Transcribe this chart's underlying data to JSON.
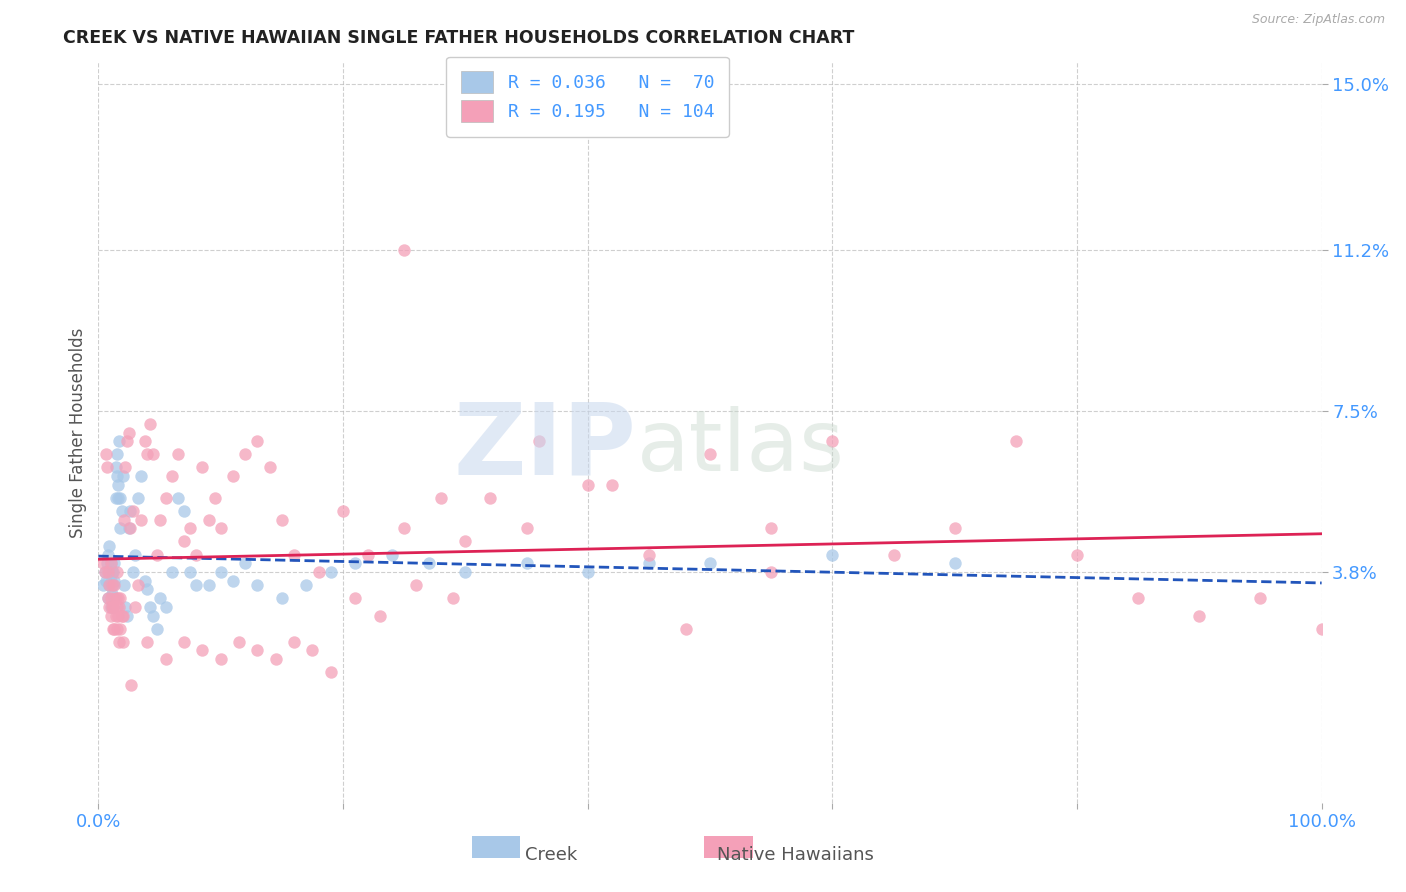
{
  "title": "CREEK VS NATIVE HAWAIIAN SINGLE FATHER HOUSEHOLDS CORRELATION CHART",
  "source": "Source: ZipAtlas.com",
  "ylabel": "Single Father Households",
  "xlim": [
    0,
    1.0
  ],
  "ylim": [
    -0.015,
    0.155
  ],
  "yticks": [
    0.038,
    0.075,
    0.112,
    0.15
  ],
  "ytick_labels": [
    "3.8%",
    "7.5%",
    "11.2%",
    "15.0%"
  ],
  "xticks": [
    0.0,
    0.2,
    0.4,
    0.6,
    0.8,
    1.0
  ],
  "xtick_labels": [
    "0.0%",
    "",
    "",
    "",
    "",
    "100.0%"
  ],
  "creek_color": "#a8c8e8",
  "creek_line_color": "#2255bb",
  "native_color": "#f4a0b8",
  "native_line_color": "#dd2255",
  "creek_R": 0.036,
  "creek_N": 70,
  "native_R": 0.195,
  "native_N": 104,
  "background_color": "#ffffff",
  "grid_color": "#bbbbbb",
  "title_color": "#222222",
  "axis_label_color": "#555555",
  "tick_color": "#4499ff",
  "watermark_zip": "ZIP",
  "watermark_atlas": "atlas",
  "legend_label_blue": "Creek",
  "legend_label_pink": "Native Hawaiians",
  "creek_x": [
    0.004,
    0.005,
    0.006,
    0.007,
    0.008,
    0.008,
    0.009,
    0.009,
    0.009,
    0.01,
    0.01,
    0.01,
    0.011,
    0.011,
    0.012,
    0.012,
    0.012,
    0.013,
    0.013,
    0.013,
    0.014,
    0.014,
    0.015,
    0.015,
    0.016,
    0.016,
    0.017,
    0.018,
    0.018,
    0.019,
    0.02,
    0.021,
    0.022,
    0.023,
    0.025,
    0.026,
    0.028,
    0.03,
    0.032,
    0.035,
    0.038,
    0.04,
    0.042,
    0.045,
    0.048,
    0.05,
    0.055,
    0.06,
    0.065,
    0.07,
    0.075,
    0.08,
    0.09,
    0.1,
    0.11,
    0.12,
    0.13,
    0.15,
    0.17,
    0.19,
    0.21,
    0.24,
    0.27,
    0.3,
    0.35,
    0.4,
    0.45,
    0.5,
    0.6,
    0.7
  ],
  "creek_y": [
    0.035,
    0.038,
    0.036,
    0.04,
    0.032,
    0.042,
    0.035,
    0.038,
    0.044,
    0.03,
    0.036,
    0.04,
    0.033,
    0.038,
    0.03,
    0.035,
    0.038,
    0.032,
    0.036,
    0.04,
    0.055,
    0.062,
    0.06,
    0.065,
    0.055,
    0.058,
    0.068,
    0.048,
    0.055,
    0.052,
    0.06,
    0.035,
    0.03,
    0.028,
    0.048,
    0.052,
    0.038,
    0.042,
    0.055,
    0.06,
    0.036,
    0.034,
    0.03,
    0.028,
    0.025,
    0.032,
    0.03,
    0.038,
    0.055,
    0.052,
    0.038,
    0.035,
    0.035,
    0.038,
    0.036,
    0.04,
    0.035,
    0.032,
    0.035,
    0.038,
    0.04,
    0.042,
    0.04,
    0.038,
    0.04,
    0.038,
    0.04,
    0.04,
    0.042,
    0.04
  ],
  "native_x": [
    0.004,
    0.005,
    0.006,
    0.007,
    0.008,
    0.008,
    0.009,
    0.009,
    0.01,
    0.01,
    0.01,
    0.011,
    0.011,
    0.012,
    0.012,
    0.013,
    0.013,
    0.014,
    0.014,
    0.015,
    0.015,
    0.015,
    0.016,
    0.016,
    0.017,
    0.017,
    0.018,
    0.018,
    0.019,
    0.02,
    0.02,
    0.021,
    0.022,
    0.023,
    0.025,
    0.026,
    0.028,
    0.03,
    0.032,
    0.035,
    0.038,
    0.04,
    0.042,
    0.045,
    0.048,
    0.05,
    0.055,
    0.06,
    0.065,
    0.07,
    0.075,
    0.08,
    0.085,
    0.09,
    0.095,
    0.1,
    0.11,
    0.12,
    0.13,
    0.14,
    0.15,
    0.16,
    0.18,
    0.2,
    0.22,
    0.25,
    0.28,
    0.3,
    0.35,
    0.4,
    0.45,
    0.5,
    0.55,
    0.6,
    0.65,
    0.7,
    0.75,
    0.8,
    0.85,
    0.9,
    0.95,
    1.0,
    0.25,
    0.027,
    0.04,
    0.055,
    0.07,
    0.085,
    0.1,
    0.115,
    0.13,
    0.145,
    0.16,
    0.175,
    0.19,
    0.21,
    0.23,
    0.26,
    0.29,
    0.32,
    0.36,
    0.42,
    0.48,
    0.55
  ],
  "native_y": [
    0.04,
    0.038,
    0.065,
    0.062,
    0.032,
    0.038,
    0.03,
    0.035,
    0.028,
    0.032,
    0.04,
    0.03,
    0.035,
    0.025,
    0.03,
    0.025,
    0.035,
    0.028,
    0.032,
    0.025,
    0.03,
    0.038,
    0.028,
    0.032,
    0.022,
    0.03,
    0.025,
    0.032,
    0.028,
    0.022,
    0.028,
    0.05,
    0.062,
    0.068,
    0.07,
    0.048,
    0.052,
    0.03,
    0.035,
    0.05,
    0.068,
    0.065,
    0.072,
    0.065,
    0.042,
    0.05,
    0.055,
    0.06,
    0.065,
    0.045,
    0.048,
    0.042,
    0.062,
    0.05,
    0.055,
    0.048,
    0.06,
    0.065,
    0.068,
    0.062,
    0.05,
    0.042,
    0.038,
    0.052,
    0.042,
    0.048,
    0.055,
    0.045,
    0.048,
    0.058,
    0.042,
    0.065,
    0.048,
    0.068,
    0.042,
    0.048,
    0.068,
    0.042,
    0.032,
    0.028,
    0.032,
    0.025,
    0.112,
    0.012,
    0.022,
    0.018,
    0.022,
    0.02,
    0.018,
    0.022,
    0.02,
    0.018,
    0.022,
    0.02,
    0.015,
    0.032,
    0.028,
    0.035,
    0.032,
    0.055,
    0.068,
    0.058,
    0.025,
    0.038
  ]
}
